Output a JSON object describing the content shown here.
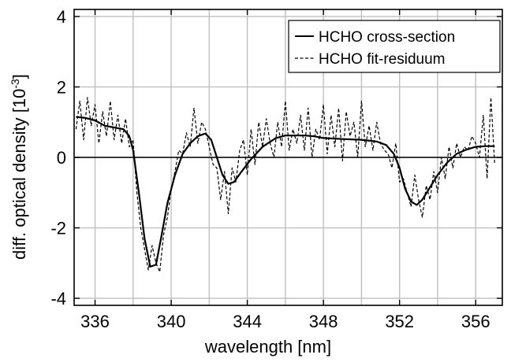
{
  "chart_data": {
    "type": "line",
    "title": "",
    "xlabel": "wavelength [nm]",
    "ylabel_main": "diff. optical density [10",
    "ylabel_exp": "-3",
    "ylabel_close": "]",
    "xlim": [
      334.9,
      357.4
    ],
    "ylim": [
      -4.2,
      4.2
    ],
    "xticks": [
      336,
      340,
      344,
      348,
      352,
      356
    ],
    "yticks": [
      -4,
      -2,
      0,
      2,
      4
    ],
    "xgrid": [
      336,
      338,
      340,
      342,
      344,
      346,
      348,
      350,
      352,
      354,
      356
    ],
    "ygrid": [
      -4,
      -2,
      0,
      2,
      4
    ],
    "grid": true,
    "zero_line": true,
    "legend": "top-right",
    "series": [
      {
        "name": "HCHO cross-section",
        "style": "solid",
        "color": "#000000",
        "x": [
          335.0,
          335.5,
          336.0,
          336.5,
          337.0,
          337.5,
          337.8,
          338.0,
          338.3,
          338.6,
          338.9,
          339.2,
          339.5,
          339.8,
          340.2,
          340.6,
          341.0,
          341.4,
          341.8,
          342.1,
          342.4,
          342.7,
          343.0,
          343.3,
          343.7,
          344.2,
          344.8,
          345.5,
          346.0,
          346.5,
          347.0,
          347.5,
          348.0,
          349.0,
          350.0,
          350.8,
          351.3,
          351.7,
          352.0,
          352.3,
          352.6,
          352.9,
          353.2,
          353.6,
          354.0,
          354.5,
          355.0,
          355.5,
          356.0,
          356.5,
          357.0
        ],
        "y": [
          1.15,
          1.12,
          1.05,
          0.9,
          0.85,
          0.8,
          0.6,
          0.2,
          -1.0,
          -2.3,
          -3.1,
          -3.05,
          -2.2,
          -1.3,
          -0.5,
          0.1,
          0.4,
          0.6,
          0.68,
          0.5,
          0.0,
          -0.5,
          -0.75,
          -0.7,
          -0.4,
          -0.05,
          0.3,
          0.55,
          0.62,
          0.62,
          0.62,
          0.6,
          0.55,
          0.52,
          0.5,
          0.45,
          0.35,
          0.1,
          -0.3,
          -0.9,
          -1.25,
          -1.35,
          -1.2,
          -0.85,
          -0.5,
          -0.15,
          0.1,
          0.22,
          0.3,
          0.32,
          0.32
        ]
      },
      {
        "name": "HCHO fit-residuum",
        "style": "dashed",
        "color": "#000000",
        "x": [
          335.0,
          335.2,
          335.4,
          335.6,
          335.8,
          336.0,
          336.2,
          336.4,
          336.6,
          336.8,
          337.0,
          337.2,
          337.4,
          337.6,
          337.8,
          338.0,
          338.2,
          338.4,
          338.6,
          338.8,
          339.0,
          339.2,
          339.4,
          339.6,
          339.8,
          340.0,
          340.2,
          340.4,
          340.6,
          340.8,
          341.0,
          341.2,
          341.4,
          341.6,
          341.8,
          342.0,
          342.2,
          342.4,
          342.6,
          342.8,
          343.0,
          343.2,
          343.4,
          343.6,
          343.8,
          344.0,
          344.2,
          344.4,
          344.6,
          344.8,
          345.0,
          345.2,
          345.4,
          345.6,
          345.8,
          346.0,
          346.2,
          346.4,
          346.6,
          346.8,
          347.0,
          347.2,
          347.4,
          347.6,
          347.8,
          348.0,
          348.2,
          348.4,
          348.6,
          348.8,
          349.0,
          349.2,
          349.4,
          349.6,
          349.8,
          350.0,
          350.2,
          350.4,
          350.6,
          350.8,
          351.0,
          351.2,
          351.4,
          351.6,
          351.8,
          352.0,
          352.2,
          352.4,
          352.6,
          352.8,
          353.0,
          353.2,
          353.4,
          353.6,
          353.8,
          354.0,
          354.2,
          354.4,
          354.6,
          354.8,
          355.0,
          355.2,
          355.4,
          355.6,
          355.8,
          356.0,
          356.2,
          356.4,
          356.6,
          356.8,
          357.0
        ],
        "y": [
          0.8,
          1.6,
          0.5,
          1.7,
          0.9,
          1.5,
          0.4,
          1.3,
          0.6,
          1.6,
          0.5,
          1.2,
          0.4,
          1.1,
          0.3,
          0.5,
          -1.0,
          -2.0,
          -2.6,
          -3.2,
          -2.5,
          -3.0,
          -3.25,
          -2.2,
          -1.7,
          -0.9,
          -0.4,
          0.2,
          0.1,
          0.7,
          0.3,
          1.4,
          0.4,
          1.0,
          0.8,
          0.3,
          -0.2,
          -0.3,
          -1.2,
          -0.4,
          -1.6,
          -0.3,
          -0.7,
          0.2,
          0.5,
          -0.5,
          0.8,
          -0.2,
          1.0,
          0.3,
          1.1,
          0.4,
          0.0,
          1.0,
          0.3,
          1.6,
          0.2,
          0.8,
          0.4,
          1.2,
          0.2,
          1.4,
          0.0,
          0.8,
          0.5,
          1.5,
          0.1,
          1.2,
          0.3,
          1.4,
          -0.1,
          1.3,
          0.6,
          1.0,
          0.0,
          1.6,
          0.3,
          0.9,
          0.2,
          1.0,
          0.4,
          0.2,
          0.1,
          -0.3,
          0.4,
          -0.7,
          -0.6,
          -1.0,
          -1.4,
          -0.5,
          -1.2,
          -1.7,
          -0.8,
          -1.2,
          -0.4,
          -1.0,
          0.0,
          -0.6,
          0.3,
          -0.3,
          0.4,
          0.0,
          0.3,
          0.2,
          0.6,
          0.4,
          0.0,
          1.2,
          -0.6,
          1.7,
          -0.2
        ]
      }
    ]
  }
}
